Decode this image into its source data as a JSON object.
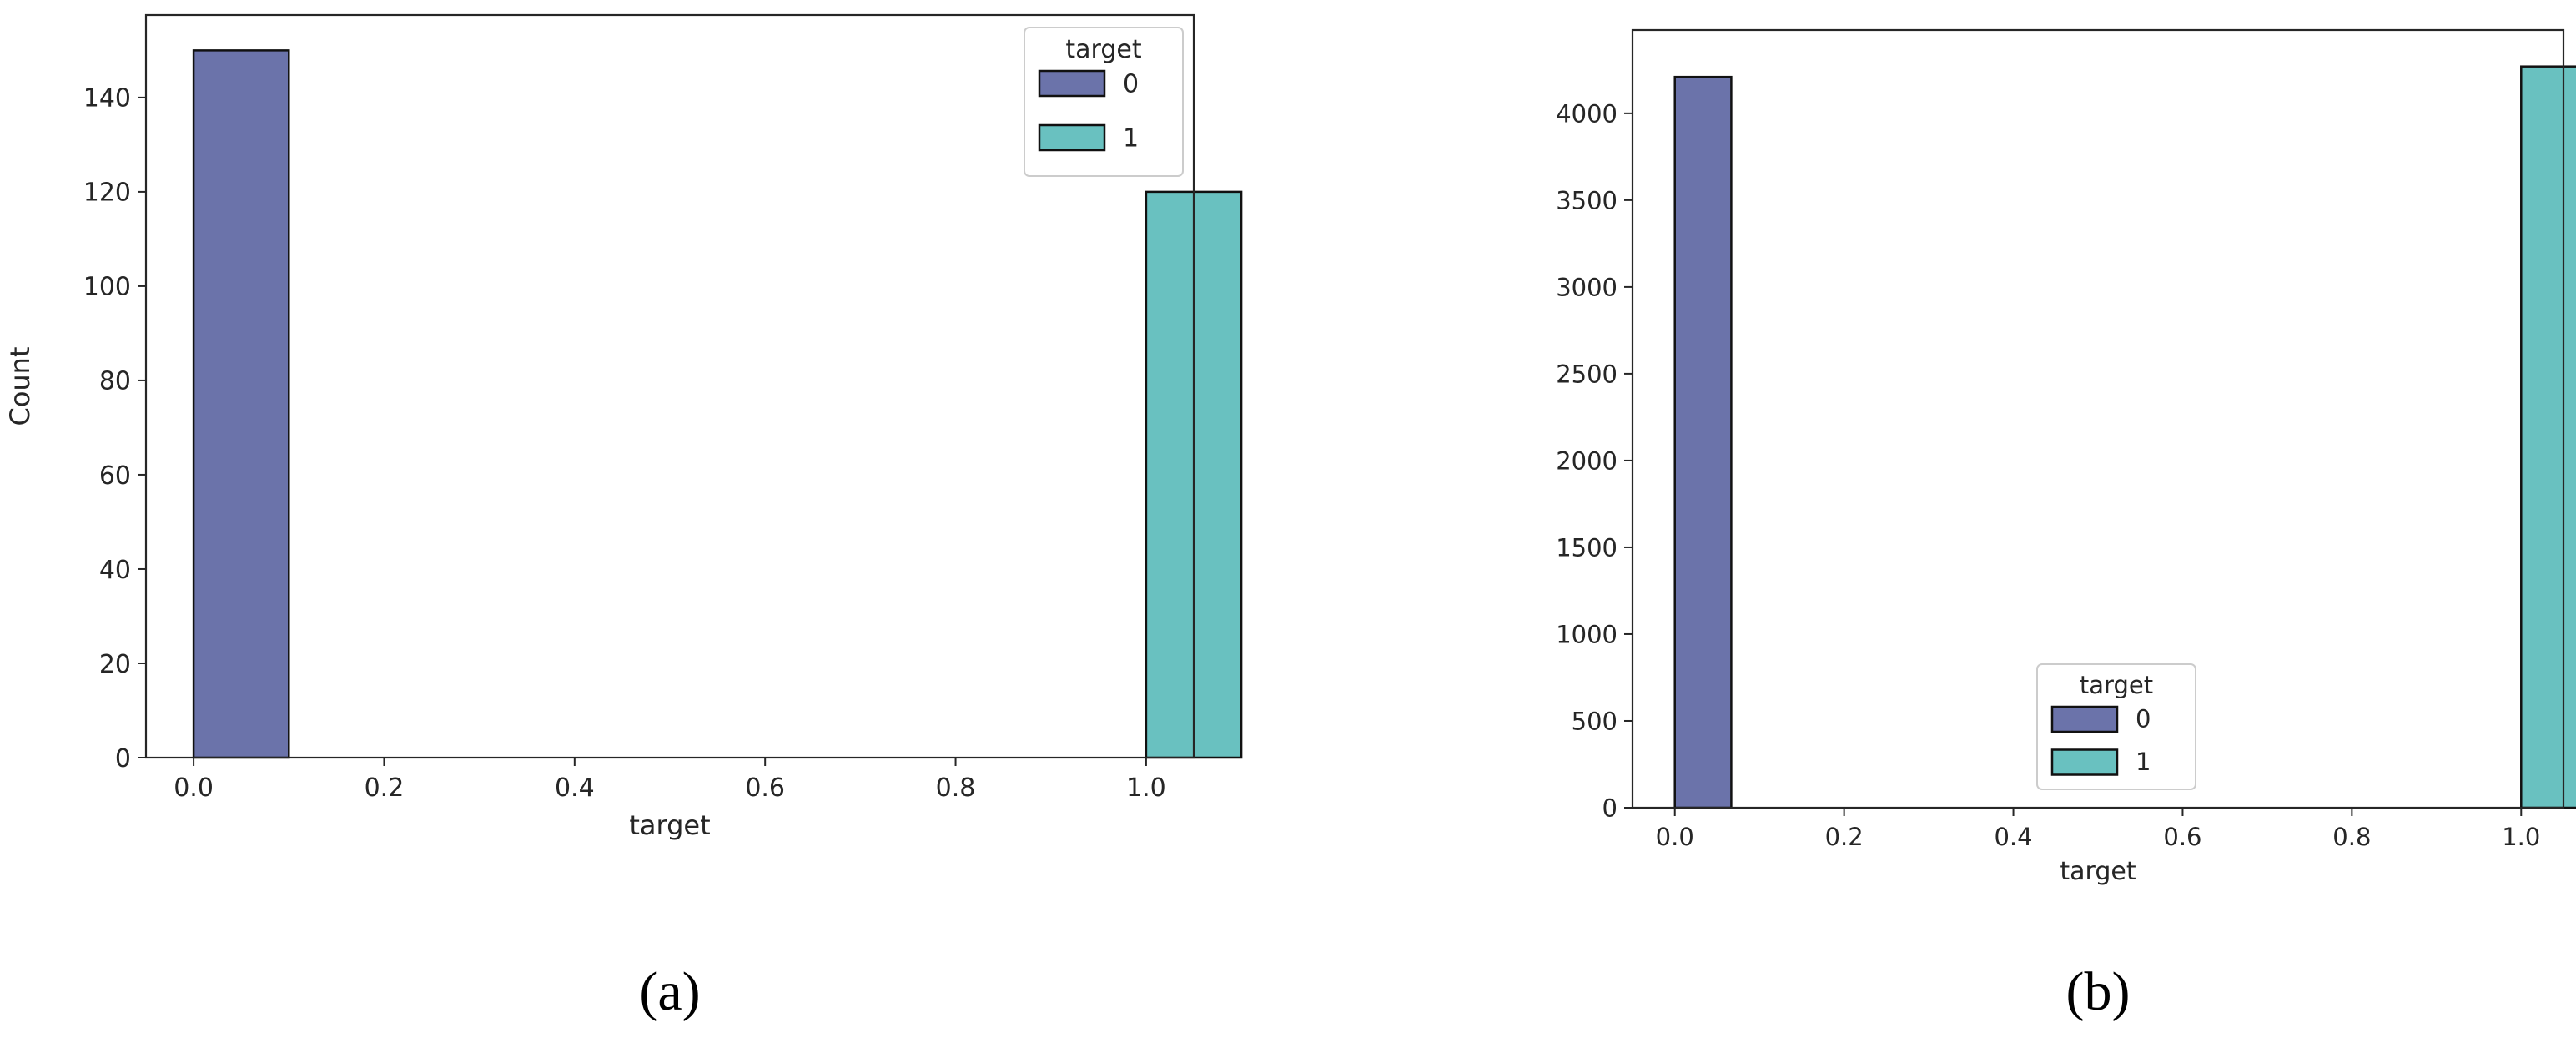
{
  "colors": {
    "class0": "#6b73aa",
    "class1": "#69c1c0",
    "edge": "#111111",
    "frame": "#262626"
  },
  "chart_data": [
    {
      "type": "bar",
      "panel_label": "(a)",
      "bar_width": 0.1,
      "x": [
        0.0,
        1.0
      ],
      "values": [
        150,
        120
      ],
      "bar_colors": [
        "#6b73aa",
        "#69c1c0"
      ],
      "xlabel": "target",
      "ylabel": "Count",
      "xlim": [
        -0.05,
        1.05
      ],
      "ylim": [
        0,
        157.5
      ],
      "xticks": [
        "0.0",
        "0.2",
        "0.4",
        "0.6",
        "0.8",
        "1.0"
      ],
      "yticks": [
        "0",
        "20",
        "40",
        "60",
        "80",
        "100",
        "120",
        "140"
      ],
      "grid": false,
      "legend": {
        "title": "target",
        "entries": [
          "0",
          "1"
        ],
        "position": "upper-right"
      }
    },
    {
      "type": "bar",
      "panel_label": "(b)",
      "bar_width": 0.0667,
      "x": [
        0.0,
        1.0
      ],
      "values": [
        4210,
        4270
      ],
      "bar_colors": [
        "#6b73aa",
        "#69c1c0"
      ],
      "xlabel": "target",
      "ylabel": "",
      "xlim": [
        -0.05,
        1.05
      ],
      "ylim": [
        0,
        4480
      ],
      "xticks": [
        "0.0",
        "0.2",
        "0.4",
        "0.6",
        "0.8",
        "1.0"
      ],
      "yticks": [
        "0",
        "500",
        "1000",
        "1500",
        "2000",
        "2500",
        "3000",
        "3500",
        "4000"
      ],
      "grid": false,
      "legend": {
        "title": "target",
        "entries": [
          "0",
          "1"
        ],
        "position": "lower-center"
      }
    }
  ]
}
